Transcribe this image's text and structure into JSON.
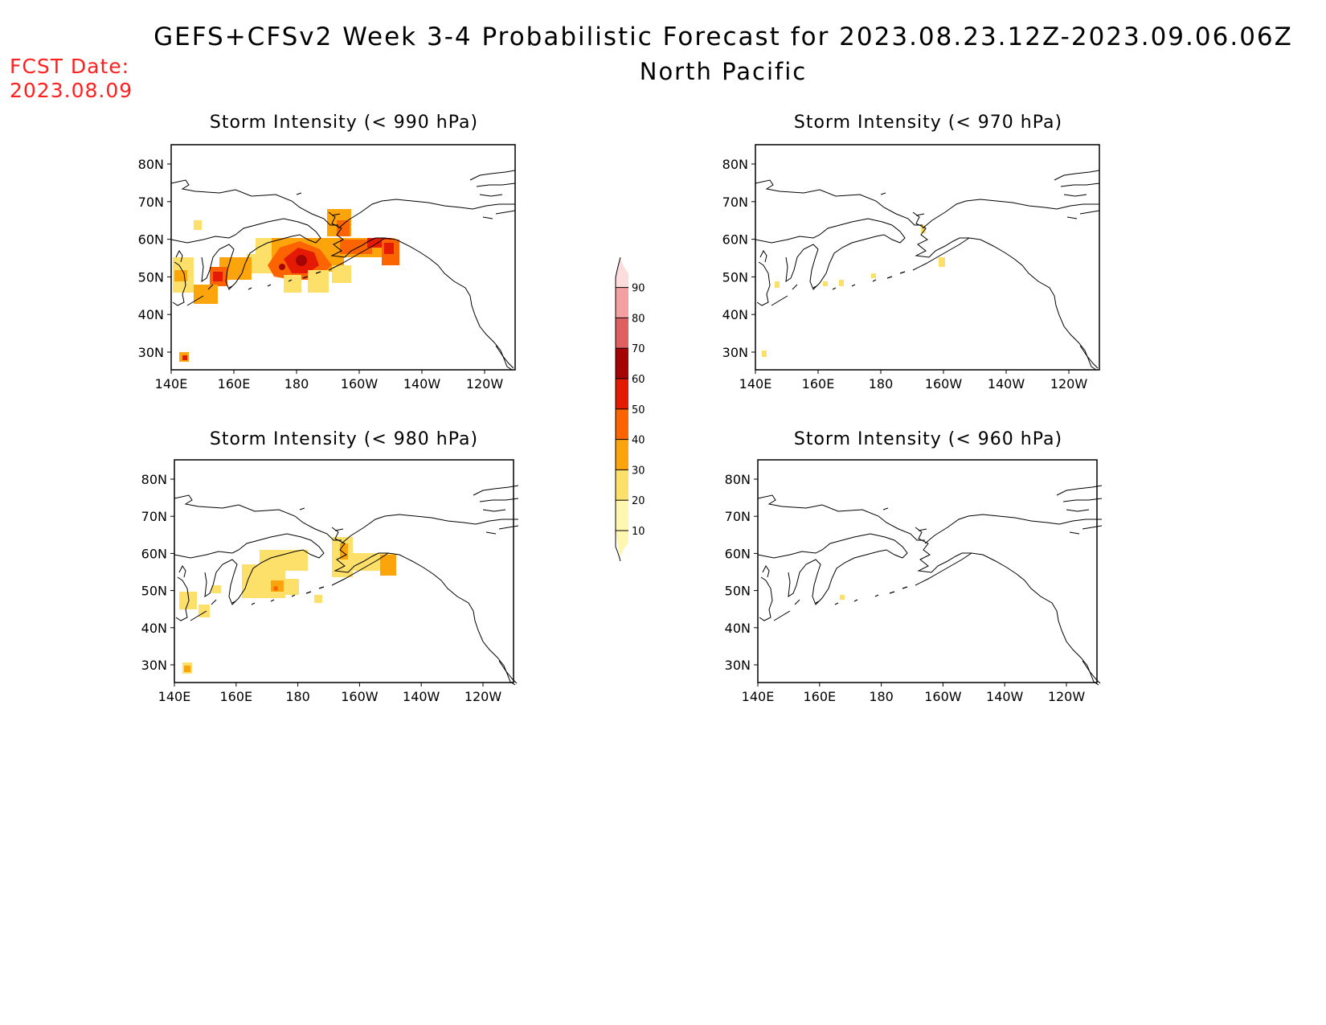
{
  "header": {
    "title": "GEFS+CFSv2 Week 3-4 Probabilistic Forecast for 2023.08.23.12Z-2023.09.06.06Z",
    "region": "North Pacific",
    "fcst_label": "FCST Date:",
    "fcst_date": "2023.08.09"
  },
  "panels": [
    {
      "id": "p990",
      "title": "Storm Intensity (< 990 hPa)"
    },
    {
      "id": "p970",
      "title": "Storm Intensity (< 970 hPa)"
    },
    {
      "id": "p980",
      "title": "Storm Intensity (< 980 hPa)"
    },
    {
      "id": "p960",
      "title": "Storm Intensity (< 960 hPa)"
    }
  ],
  "map_axes": {
    "lat_ticks": [
      "80N",
      "70N",
      "60N",
      "50N",
      "40N",
      "30N"
    ],
    "lon_ticks": [
      "140E",
      "160E",
      "180",
      "160W",
      "140W",
      "120W"
    ]
  },
  "colorbar": {
    "levels": [
      "10",
      "20",
      "30",
      "40",
      "50",
      "60",
      "70",
      "80",
      "90"
    ],
    "colors": [
      "#fff7b0",
      "#fde06a",
      "#fca40c",
      "#fc6402",
      "#e41a04",
      "#a40404",
      "#de6060",
      "#f4a0a0",
      "#fcdcdc"
    ]
  }
}
